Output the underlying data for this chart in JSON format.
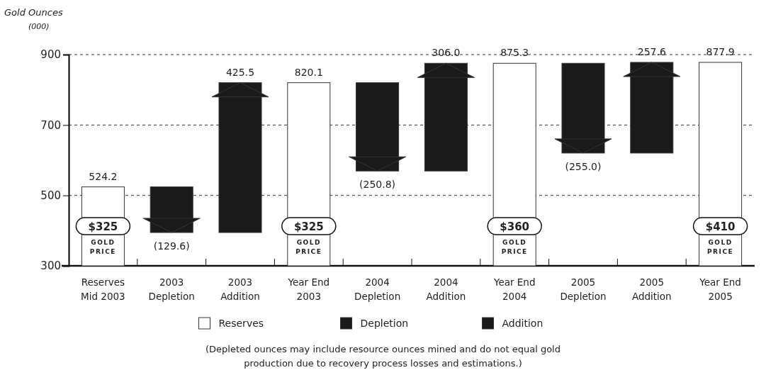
{
  "chart_data": {
    "type": "bar",
    "ylabel": "Gold Ounces$_{(000)}$",
    "categories": [
      "Reserves\nMid 2003",
      "2003\nDepletion",
      "2003\nAddition",
      "Year End\n2003",
      "2004\nDepletion",
      "2004\nAddition",
      "Year End\n2004",
      "2005\nDepletion",
      "2005\nAddition",
      "Year End\n2005"
    ],
    "series": [
      {
        "name": "Reserves",
        "color": "#ffffff",
        "values": [
          524.2,
          null,
          null,
          820.1,
          null,
          null,
          875.3,
          null,
          null,
          877.9
        ],
        "value_labels": [
          "524.2",
          null,
          null,
          "820.1",
          null,
          null,
          "875.3",
          null,
          null,
          "877.9"
        ]
      },
      {
        "name": "Depletion",
        "color": "#1a1a1a",
        "base": [
          null,
          524.2,
          null,
          null,
          820.1,
          null,
          null,
          875.3,
          null,
          null
        ],
        "values": [
          null,
          -129.6,
          null,
          null,
          -250.8,
          null,
          null,
          -255.0,
          null,
          null
        ],
        "value_labels": [
          null,
          "(129.6)",
          null,
          null,
          "(250.8)",
          null,
          null,
          "(255.0)",
          null,
          null
        ]
      },
      {
        "name": "Addition",
        "color": "#1a1a1a",
        "base": [
          null,
          null,
          394.6,
          null,
          null,
          569.3,
          null,
          null,
          620.3,
          null
        ],
        "values": [
          null,
          null,
          425.5,
          null,
          null,
          306.0,
          null,
          null,
          257.6,
          null
        ],
        "value_labels": [
          null,
          null,
          "425.5",
          null,
          null,
          "306.0",
          null,
          null,
          "257.6",
          null
        ]
      }
    ],
    "ylim": [
      300,
      900
    ],
    "yticks": [
      300,
      500,
      700,
      900
    ],
    "grid": "y",
    "legend": "bottom",
    "annotations": [
      "$325\nGOLD PRICE",
      "$325\nGOLD PRICE",
      "$360\nGOLD PRICE",
      "$410\nGOLD PRICE",
      "(Depleted ounces may include resource ounces mined and do not equal gold production due to recovery process losses and estimations.)"
    ]
  }
}
